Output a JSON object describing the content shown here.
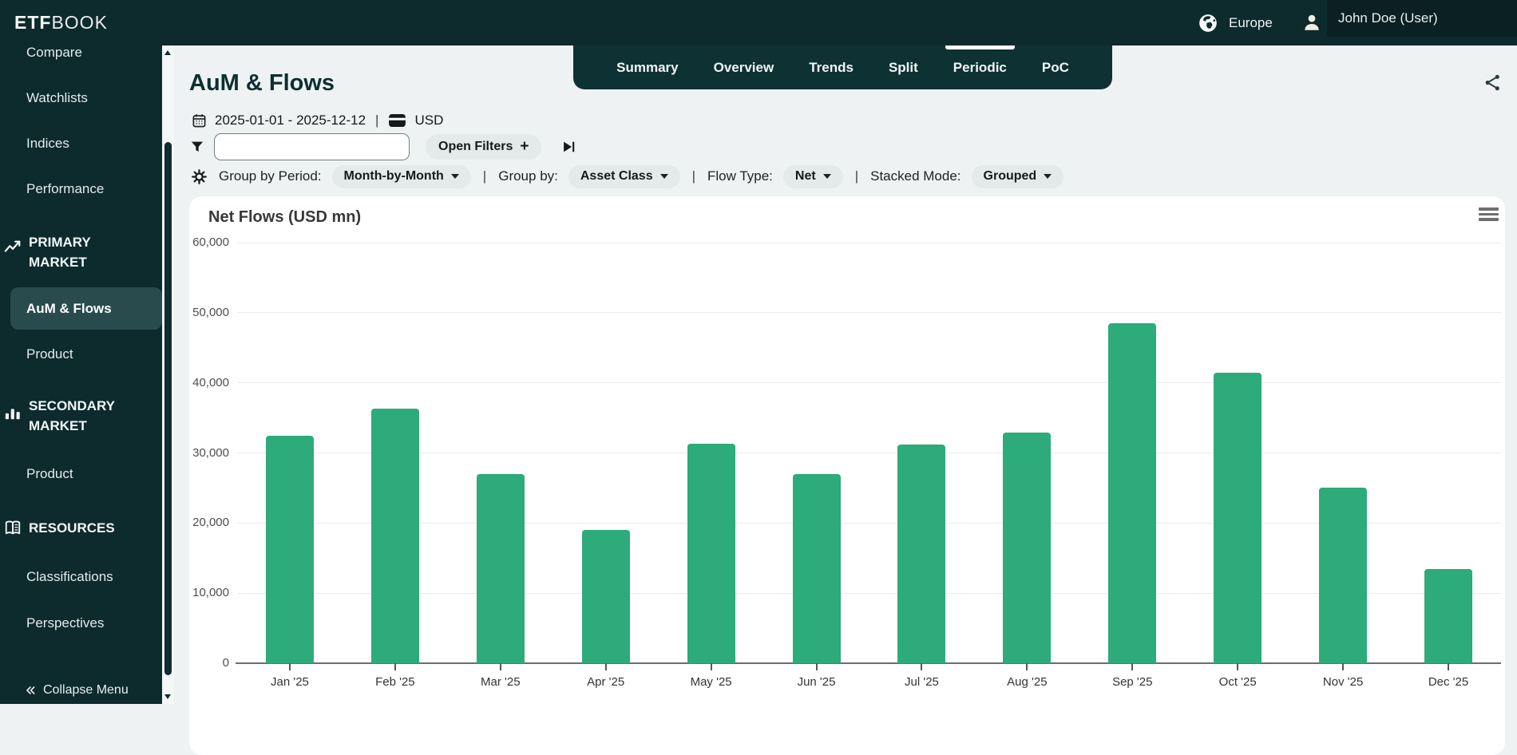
{
  "header": {
    "logo_bold": "ETF",
    "logo_light": "BOOK",
    "region": "Europe",
    "user": "John Doe (User)"
  },
  "sidebar": {
    "top_items": [
      "Compare",
      "Watchlists",
      "Indices",
      "Performance"
    ],
    "sections": [
      {
        "label": "PRIMARY MARKET",
        "icon": "trending-up-icon",
        "items": [
          "AuM & Flows",
          "Product"
        ]
      },
      {
        "label": "SECONDARY MARKET",
        "icon": "bar-chart-icon",
        "items": [
          "Product"
        ]
      },
      {
        "label": "RESOURCES",
        "icon": "book-icon",
        "items": [
          "Classifications",
          "Perspectives"
        ]
      }
    ],
    "active_item": "AuM & Flows",
    "collapse_label": "Collapse Menu"
  },
  "page": {
    "title": "AuM & Flows",
    "tabs": [
      "Summary",
      "Overview",
      "Trends",
      "Split",
      "Periodic",
      "PoC"
    ],
    "active_tab": "Periodic"
  },
  "toolbar": {
    "date_range": "2025-01-01 - 2025-12-12",
    "currency": "USD",
    "separator": "|",
    "filter_input_value": "",
    "open_filters": "Open Filters",
    "plus": "+",
    "controls": [
      {
        "label": "Group by Period:",
        "value": "Month-by-Month"
      },
      {
        "label": "Group by:",
        "value": "Asset Class"
      },
      {
        "label": "Flow Type:",
        "value": "Net"
      },
      {
        "label": "Stacked Mode:",
        "value": "Grouped"
      }
    ]
  },
  "chart_data": {
    "type": "bar",
    "title": "Net Flows (USD mn)",
    "categories": [
      "Jan '25",
      "Feb '25",
      "Mar '25",
      "Apr '25",
      "May '25",
      "Jun '25",
      "Jul '25",
      "Aug '25",
      "Sep '25",
      "Oct '25",
      "Nov '25",
      "Dec '25"
    ],
    "values": [
      32500,
      36300,
      27000,
      19000,
      31300,
      27000,
      31200,
      32900,
      48500,
      41400,
      25000,
      13400
    ],
    "xlabel": "",
    "ylabel": "",
    "ylim": [
      0,
      60000
    ],
    "ytick_interval": 10000,
    "bar_color": "#2dab7a",
    "grid": true,
    "legend": false
  },
  "colors": {
    "sidebar_bg": "#0d2a2d",
    "tabbar_bg": "#0e3134",
    "page_bg": "#eef2f3",
    "accent_green": "#2dab7a",
    "pill_bg": "#e4e9ea",
    "active_item_bg": "#2a4b4e"
  }
}
